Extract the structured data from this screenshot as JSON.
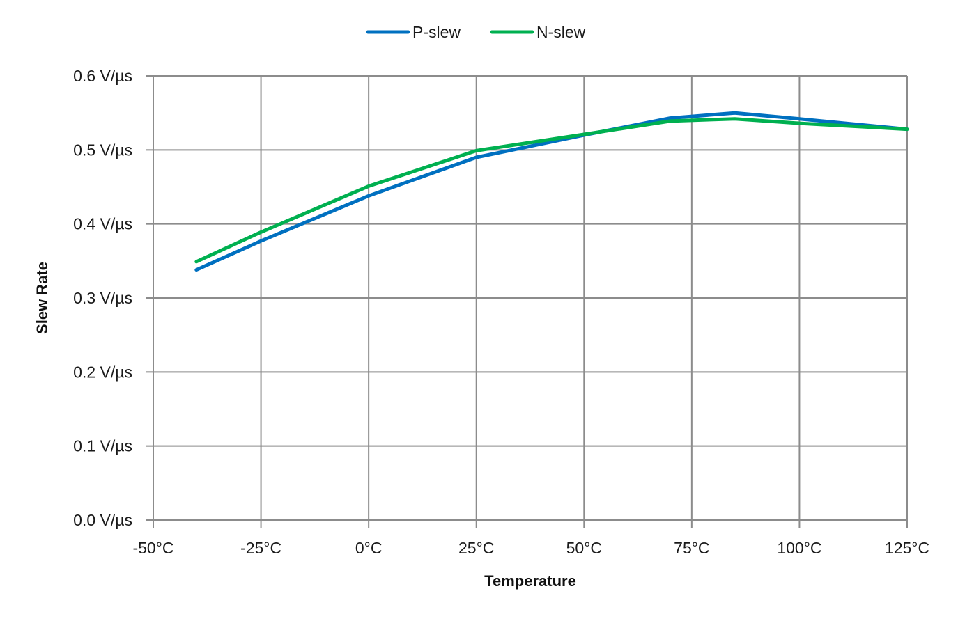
{
  "chart_data": {
    "type": "line",
    "title": "",
    "xlabel": "Temperature",
    "ylabel": "Slew Rate",
    "xlim": [
      -50,
      125
    ],
    "ylim": [
      0,
      0.6
    ],
    "x_ticks": [
      -50,
      -25,
      0,
      25,
      50,
      75,
      100,
      125
    ],
    "x_tick_labels": [
      "-50°C",
      "-25°C",
      "0°C",
      "25°C",
      "50°C",
      "75°C",
      "100°C",
      "125°C"
    ],
    "y_ticks": [
      0,
      0.1,
      0.2,
      0.3,
      0.4,
      0.5,
      0.6
    ],
    "y_tick_labels": [
      "0.0 V/µs",
      "0.1 V/µs",
      "0.2 V/µs",
      "0.3 V/µs",
      "0.4 V/µs",
      "0.5 V/µs",
      "0.6 V/µs"
    ],
    "grid": true,
    "legend_position": "top-center",
    "series": [
      {
        "name": "P-slew",
        "color": "#0070C0",
        "x": [
          -40,
          -25,
          0,
          25,
          50,
          70,
          85,
          100,
          125
        ],
        "y": [
          0.338,
          0.377,
          0.438,
          0.49,
          0.52,
          0.543,
          0.55,
          0.542,
          0.528
        ]
      },
      {
        "name": "N-slew",
        "color": "#00B050",
        "x": [
          -40,
          -25,
          0,
          25,
          50,
          70,
          85,
          100,
          125
        ],
        "y": [
          0.349,
          0.389,
          0.451,
          0.499,
          0.521,
          0.539,
          0.542,
          0.536,
          0.528
        ]
      }
    ]
  }
}
